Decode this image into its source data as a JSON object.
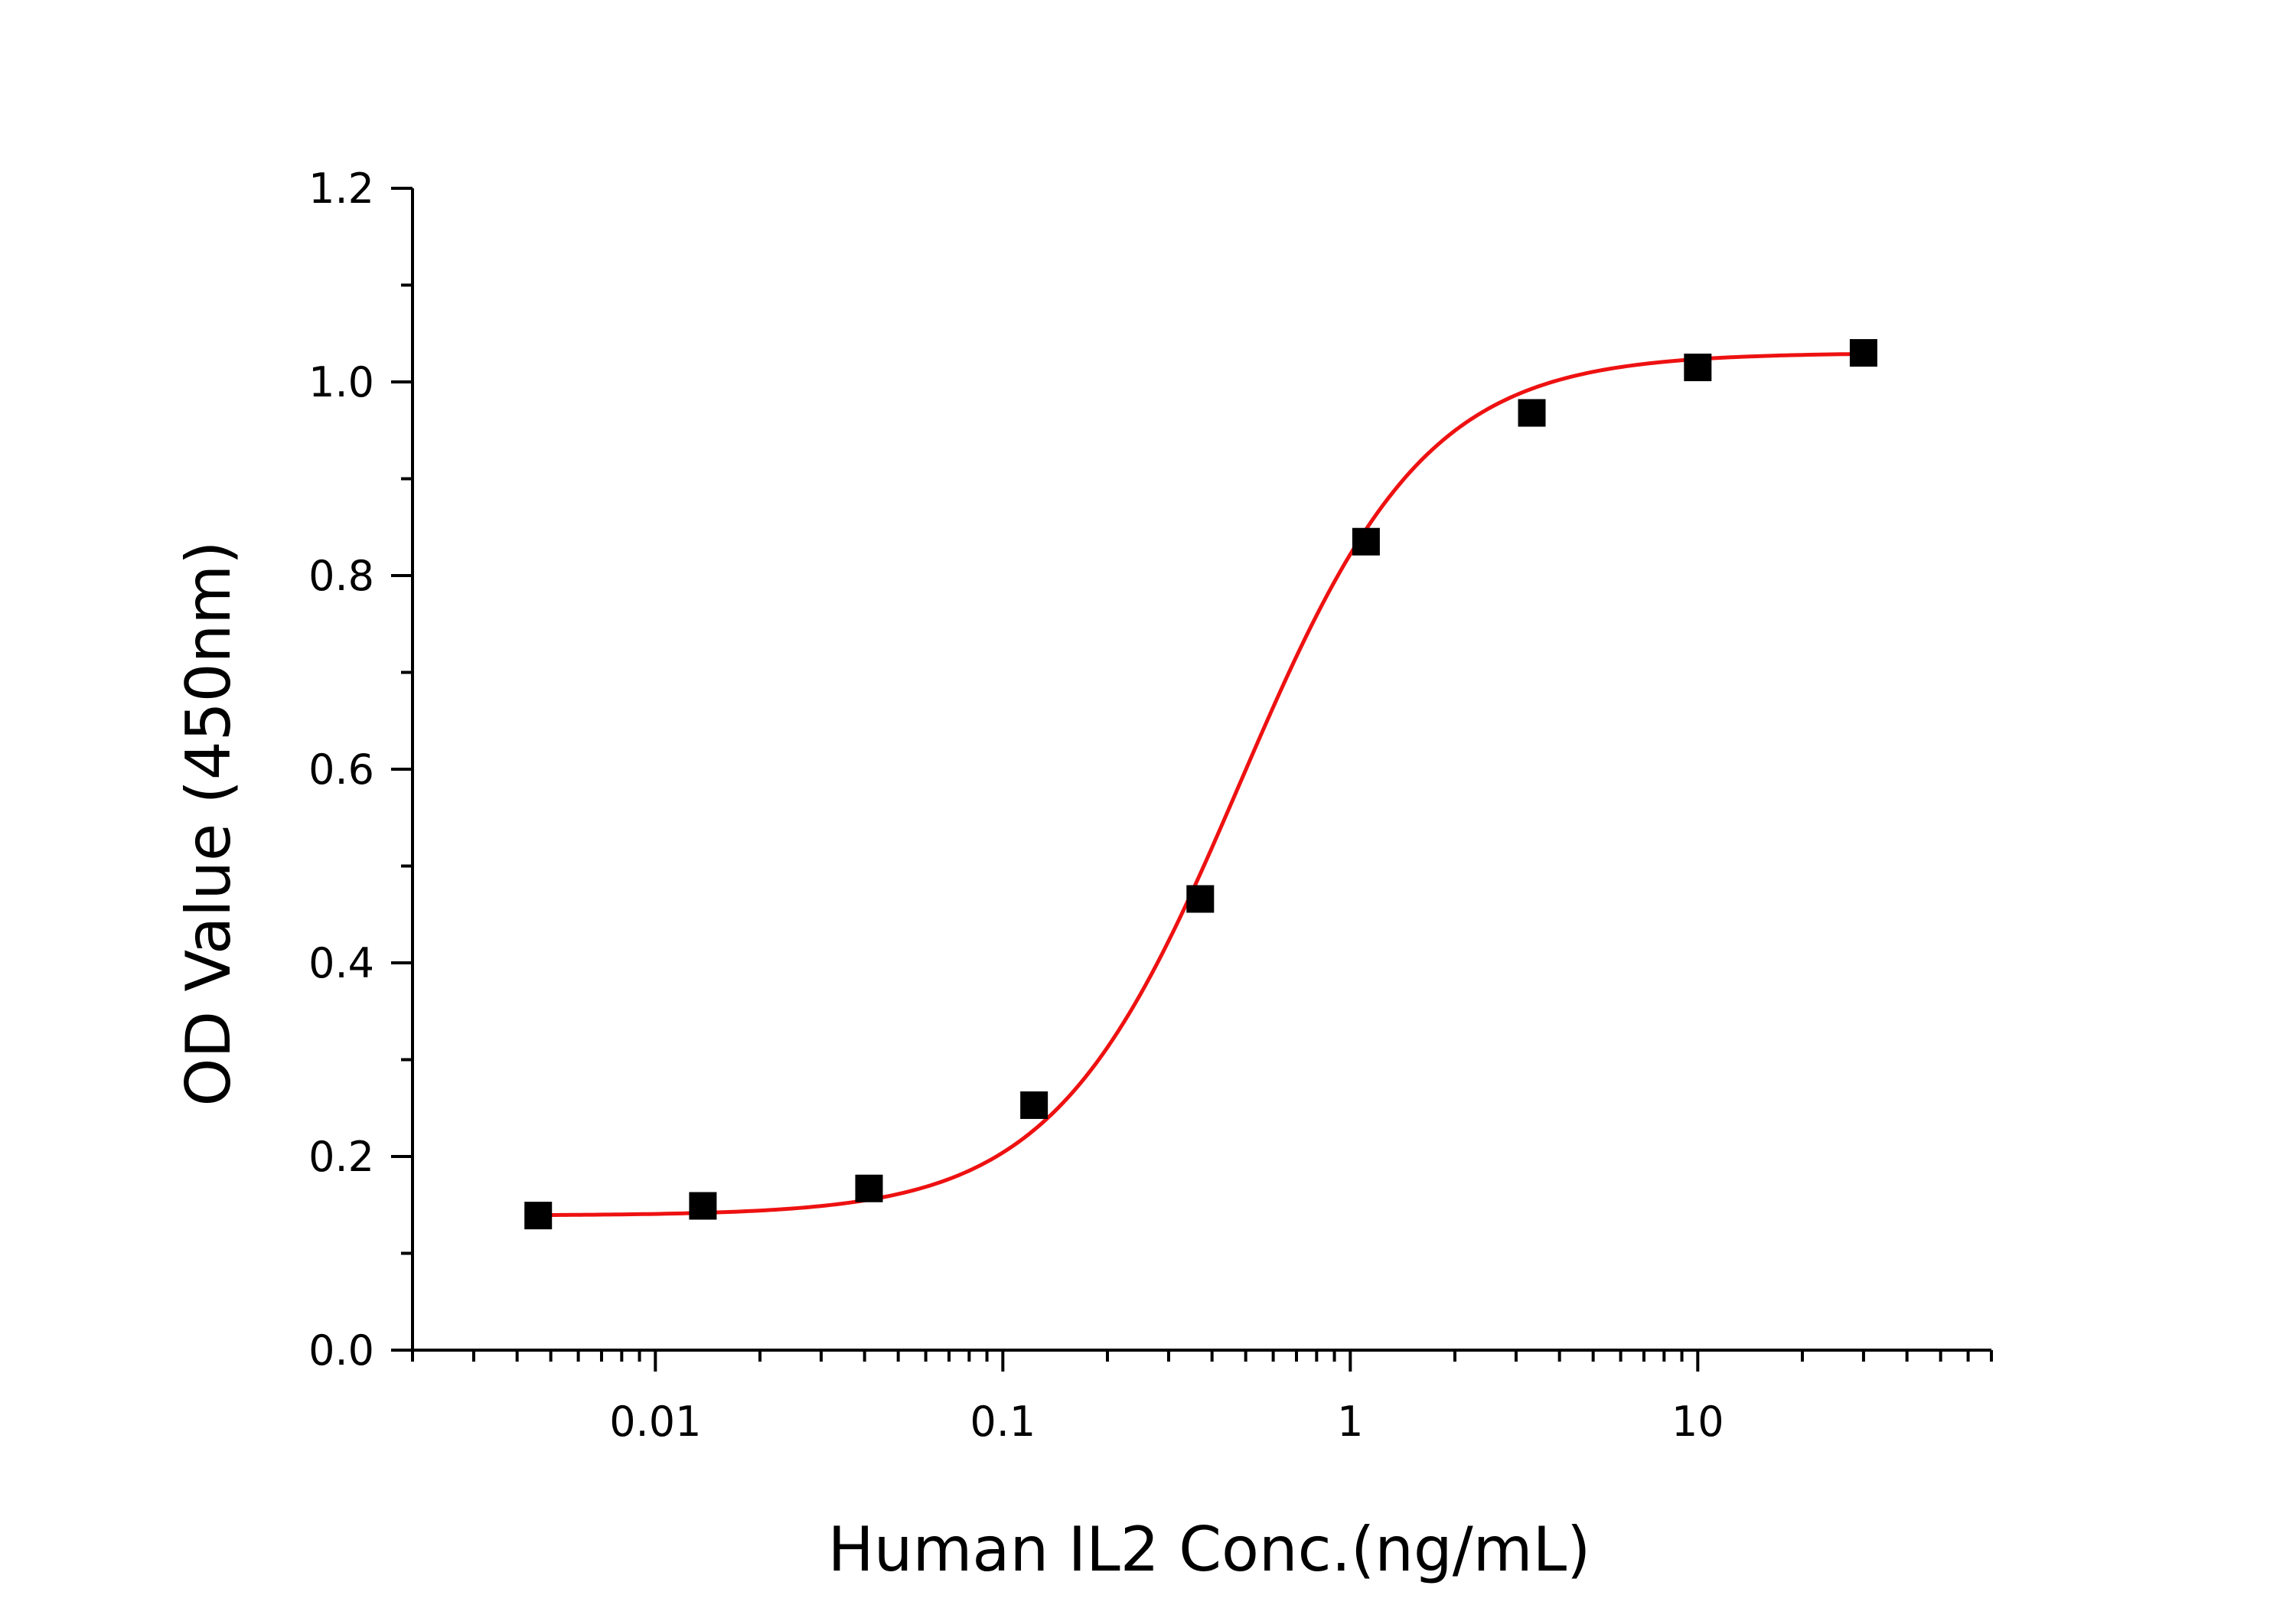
{
  "chart_data": {
    "type": "scatter",
    "xlabel": "Human IL2 Conc.(ng/mL)",
    "ylabel": "OD Value (450nm)",
    "x_scale": "log",
    "xlim": [
      0.002,
      70
    ],
    "ylim": [
      0,
      1.2
    ],
    "grid": false,
    "legend": "none",
    "x_tick_values": [
      0.01,
      0.1,
      1,
      10
    ],
    "x_tick_labels": [
      "0.01",
      "0.1",
      "1",
      "10"
    ],
    "y_tick_values": [
      0,
      0.2,
      0.4,
      0.6,
      0.8,
      1.0,
      1.2
    ],
    "y_tick_labels": [
      "0.0",
      "0.2",
      "0.4",
      "0.6",
      "0.8",
      "1.0",
      "1.2"
    ],
    "series": [
      {
        "type": "scatter",
        "marker": "square",
        "color": "#000000",
        "x": [
          0.0046,
          0.0137,
          0.0412,
          0.123,
          0.37,
          1.11,
          3.33,
          10,
          30
        ],
        "y": [
          0.139,
          0.149,
          0.167,
          0.253,
          0.466,
          0.835,
          0.968,
          1.015,
          1.03
        ]
      },
      {
        "type": "line",
        "color": "#ee1111",
        "fit": {
          "model": "4PL",
          "bottom": 0.139,
          "top": 1.03,
          "ec50": 0.48,
          "hill": 1.62
        }
      }
    ]
  }
}
